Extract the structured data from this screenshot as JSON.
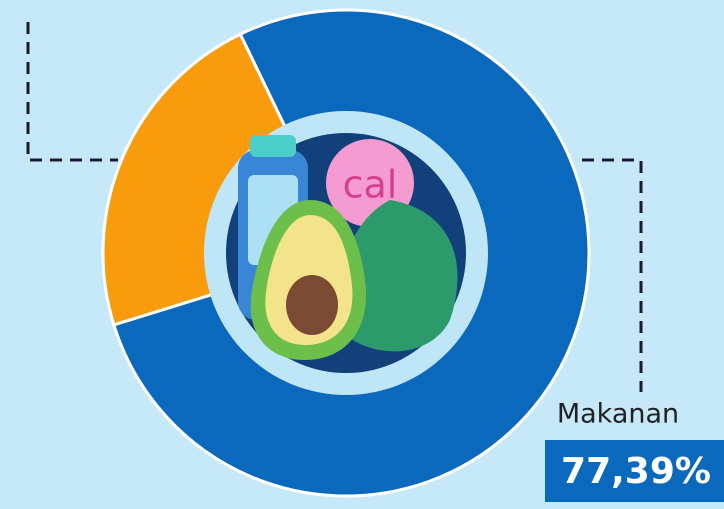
{
  "chart_data": {
    "type": "pie",
    "categories": [
      "Makanan",
      null
    ],
    "values": [
      77.39,
      22.61
    ],
    "value_labels": [
      "77,39%",
      null
    ],
    "colors": [
      "#0b69bd",
      "#f89b0c"
    ],
    "start_angle": -25.8,
    "icon_text": "cal"
  }
}
